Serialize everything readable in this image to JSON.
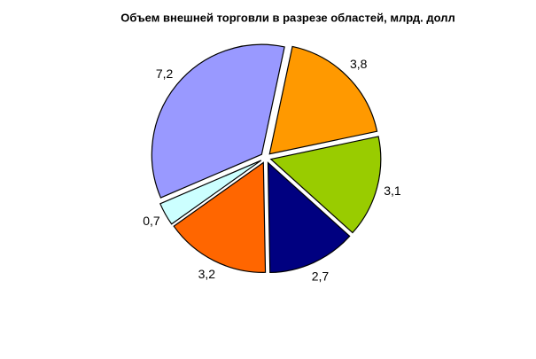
{
  "chart_data": {
    "type": "pie",
    "title": "Объем внешней торговли в разрезе областей, млрд. долл",
    "values": [
      3.8,
      3.1,
      2.7,
      3.2,
      0.7,
      7.2
    ],
    "value_labels": [
      "3,8",
      "3,1",
      "2,7",
      "3,2",
      "0,7",
      "7,2"
    ],
    "colors": [
      "#ff9900",
      "#99cc00",
      "#000080",
      "#ff6600",
      "#ccffff",
      "#9999ff"
    ]
  }
}
